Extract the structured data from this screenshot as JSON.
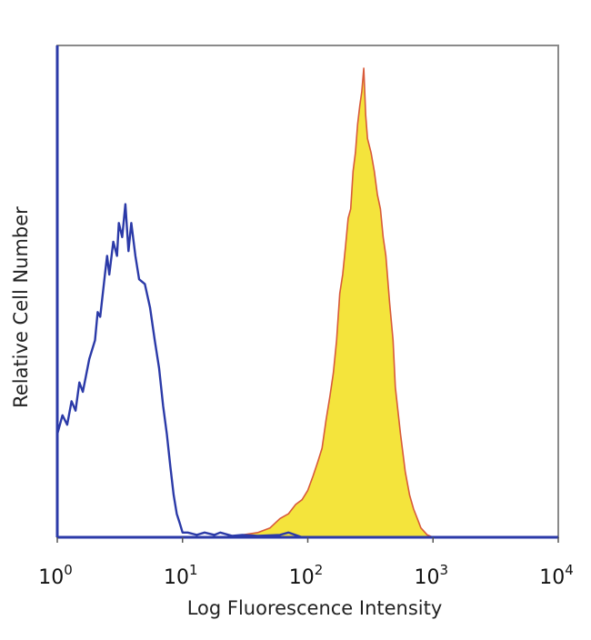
{
  "chart_data": {
    "type": "area",
    "xscale": "log",
    "xlim": [
      1,
      10000
    ],
    "ylim": [
      0,
      100
    ],
    "xlabel": "Log Fluorescence Intensity",
    "ylabel": "Relative Cell Number",
    "grid": false,
    "legend": "none",
    "xticks": [
      {
        "base": "10",
        "exp": "0"
      },
      {
        "base": "10",
        "exp": "1"
      },
      {
        "base": "10",
        "exp": "2"
      },
      {
        "base": "10",
        "exp": "3"
      },
      {
        "base": "10",
        "exp": "4"
      }
    ],
    "xtick_values": [
      1,
      10,
      100,
      1000,
      10000
    ],
    "series": [
      {
        "style": "outline",
        "color": "#2b3aa8",
        "points": [
          [
            1.0,
            22
          ],
          [
            1.1,
            26
          ],
          [
            1.2,
            24
          ],
          [
            1.3,
            29
          ],
          [
            1.4,
            27
          ],
          [
            1.5,
            33
          ],
          [
            1.6,
            31
          ],
          [
            1.8,
            38
          ],
          [
            2.0,
            42
          ],
          [
            2.1,
            48
          ],
          [
            2.2,
            47
          ],
          [
            2.4,
            56
          ],
          [
            2.5,
            60
          ],
          [
            2.6,
            56
          ],
          [
            2.8,
            63
          ],
          [
            3.0,
            60
          ],
          [
            3.1,
            67
          ],
          [
            3.3,
            64
          ],
          [
            3.5,
            71
          ],
          [
            3.7,
            61
          ],
          [
            3.9,
            67
          ],
          [
            4.2,
            60
          ],
          [
            4.5,
            55
          ],
          [
            5.0,
            54
          ],
          [
            5.5,
            49
          ],
          [
            6.0,
            42
          ],
          [
            6.5,
            36
          ],
          [
            7.0,
            28
          ],
          [
            7.5,
            22
          ],
          [
            8.0,
            15
          ],
          [
            8.5,
            9
          ],
          [
            9.0,
            5
          ],
          [
            9.5,
            3
          ],
          [
            10.0,
            1
          ],
          [
            11.0,
            1
          ],
          [
            13.0,
            0.5
          ],
          [
            15.0,
            1
          ],
          [
            18.0,
            0.5
          ],
          [
            20.0,
            1
          ],
          [
            25.0,
            0.3
          ],
          [
            30.0,
            0.5
          ],
          [
            40.0,
            0.3
          ],
          [
            60.0,
            0.5
          ],
          [
            70.0,
            1
          ],
          [
            90.0,
            0
          ],
          [
            10000,
            0
          ]
        ]
      },
      {
        "style": "filled",
        "color": "#d85a3a",
        "fill": "#f4e43c",
        "points": [
          [
            1,
            0
          ],
          [
            20,
            0
          ],
          [
            30,
            0.5
          ],
          [
            40,
            1
          ],
          [
            50,
            2
          ],
          [
            60,
            4
          ],
          [
            70,
            5
          ],
          [
            80,
            7
          ],
          [
            90,
            8
          ],
          [
            100,
            10
          ],
          [
            110,
            13
          ],
          [
            120,
            16
          ],
          [
            130,
            19
          ],
          [
            140,
            25
          ],
          [
            150,
            30
          ],
          [
            160,
            35
          ],
          [
            170,
            42
          ],
          [
            180,
            52
          ],
          [
            190,
            56
          ],
          [
            200,
            62
          ],
          [
            210,
            68
          ],
          [
            220,
            70
          ],
          [
            230,
            78
          ],
          [
            240,
            82
          ],
          [
            250,
            88
          ],
          [
            260,
            92
          ],
          [
            270,
            95
          ],
          [
            280,
            100
          ],
          [
            290,
            90
          ],
          [
            300,
            85
          ],
          [
            320,
            82
          ],
          [
            340,
            78
          ],
          [
            360,
            73
          ],
          [
            380,
            70
          ],
          [
            400,
            64
          ],
          [
            420,
            60
          ],
          [
            450,
            50
          ],
          [
            480,
            42
          ],
          [
            500,
            32
          ],
          [
            550,
            22
          ],
          [
            600,
            14
          ],
          [
            650,
            9
          ],
          [
            700,
            6
          ],
          [
            750,
            4
          ],
          [
            800,
            2
          ],
          [
            900,
            0.5
          ],
          [
            1000,
            0
          ],
          [
            10000,
            0
          ]
        ]
      }
    ]
  }
}
